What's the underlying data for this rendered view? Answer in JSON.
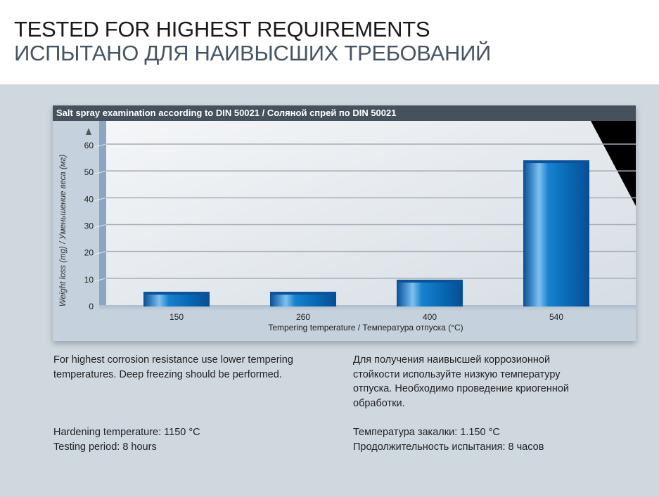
{
  "header": {
    "title_en": "TESTED FOR HIGHEST REQUIREMENTS",
    "title_ru": "ИСПЫТАНО ДЛЯ НАИВЫСШИХ ТРЕБОВАНИЙ"
  },
  "chart_data": {
    "type": "bar",
    "title": "Salt spray examination according to DIN 50021 / Соляной спрей по DIN 50021",
    "xlabel": "Tempering temperature / Температура отпуска (°C)",
    "ylabel": "Weight loss (mg) / Уменьшение веса (мг)",
    "categories": [
      "150",
      "260",
      "400",
      "540"
    ],
    "values": [
      6,
      6,
      10.5,
      55
    ],
    "ylim": [
      0,
      60
    ],
    "yticks": [
      "0",
      "10",
      "20",
      "30",
      "40",
      "50",
      "60"
    ],
    "grid": true,
    "bar_color": "#0a62b0",
    "legend": "none"
  },
  "notes": {
    "en": {
      "paragraph": "For highest corrosion resistance use lower tempering temperatures. Deep freezing should be performed.",
      "hardening": "Hardening temperature: 1150 °C",
      "period": "Testing period: 8 hours"
    },
    "ru": {
      "paragraph": "Для получения наивысшей коррозионной стойкости используйте низкую температуру отпуска. Необходимо проведение криогенной обработки.",
      "hardening": "Температура закалки: 1.150 °C",
      "period": "Продолжительность испытания: 8 часов"
    }
  }
}
